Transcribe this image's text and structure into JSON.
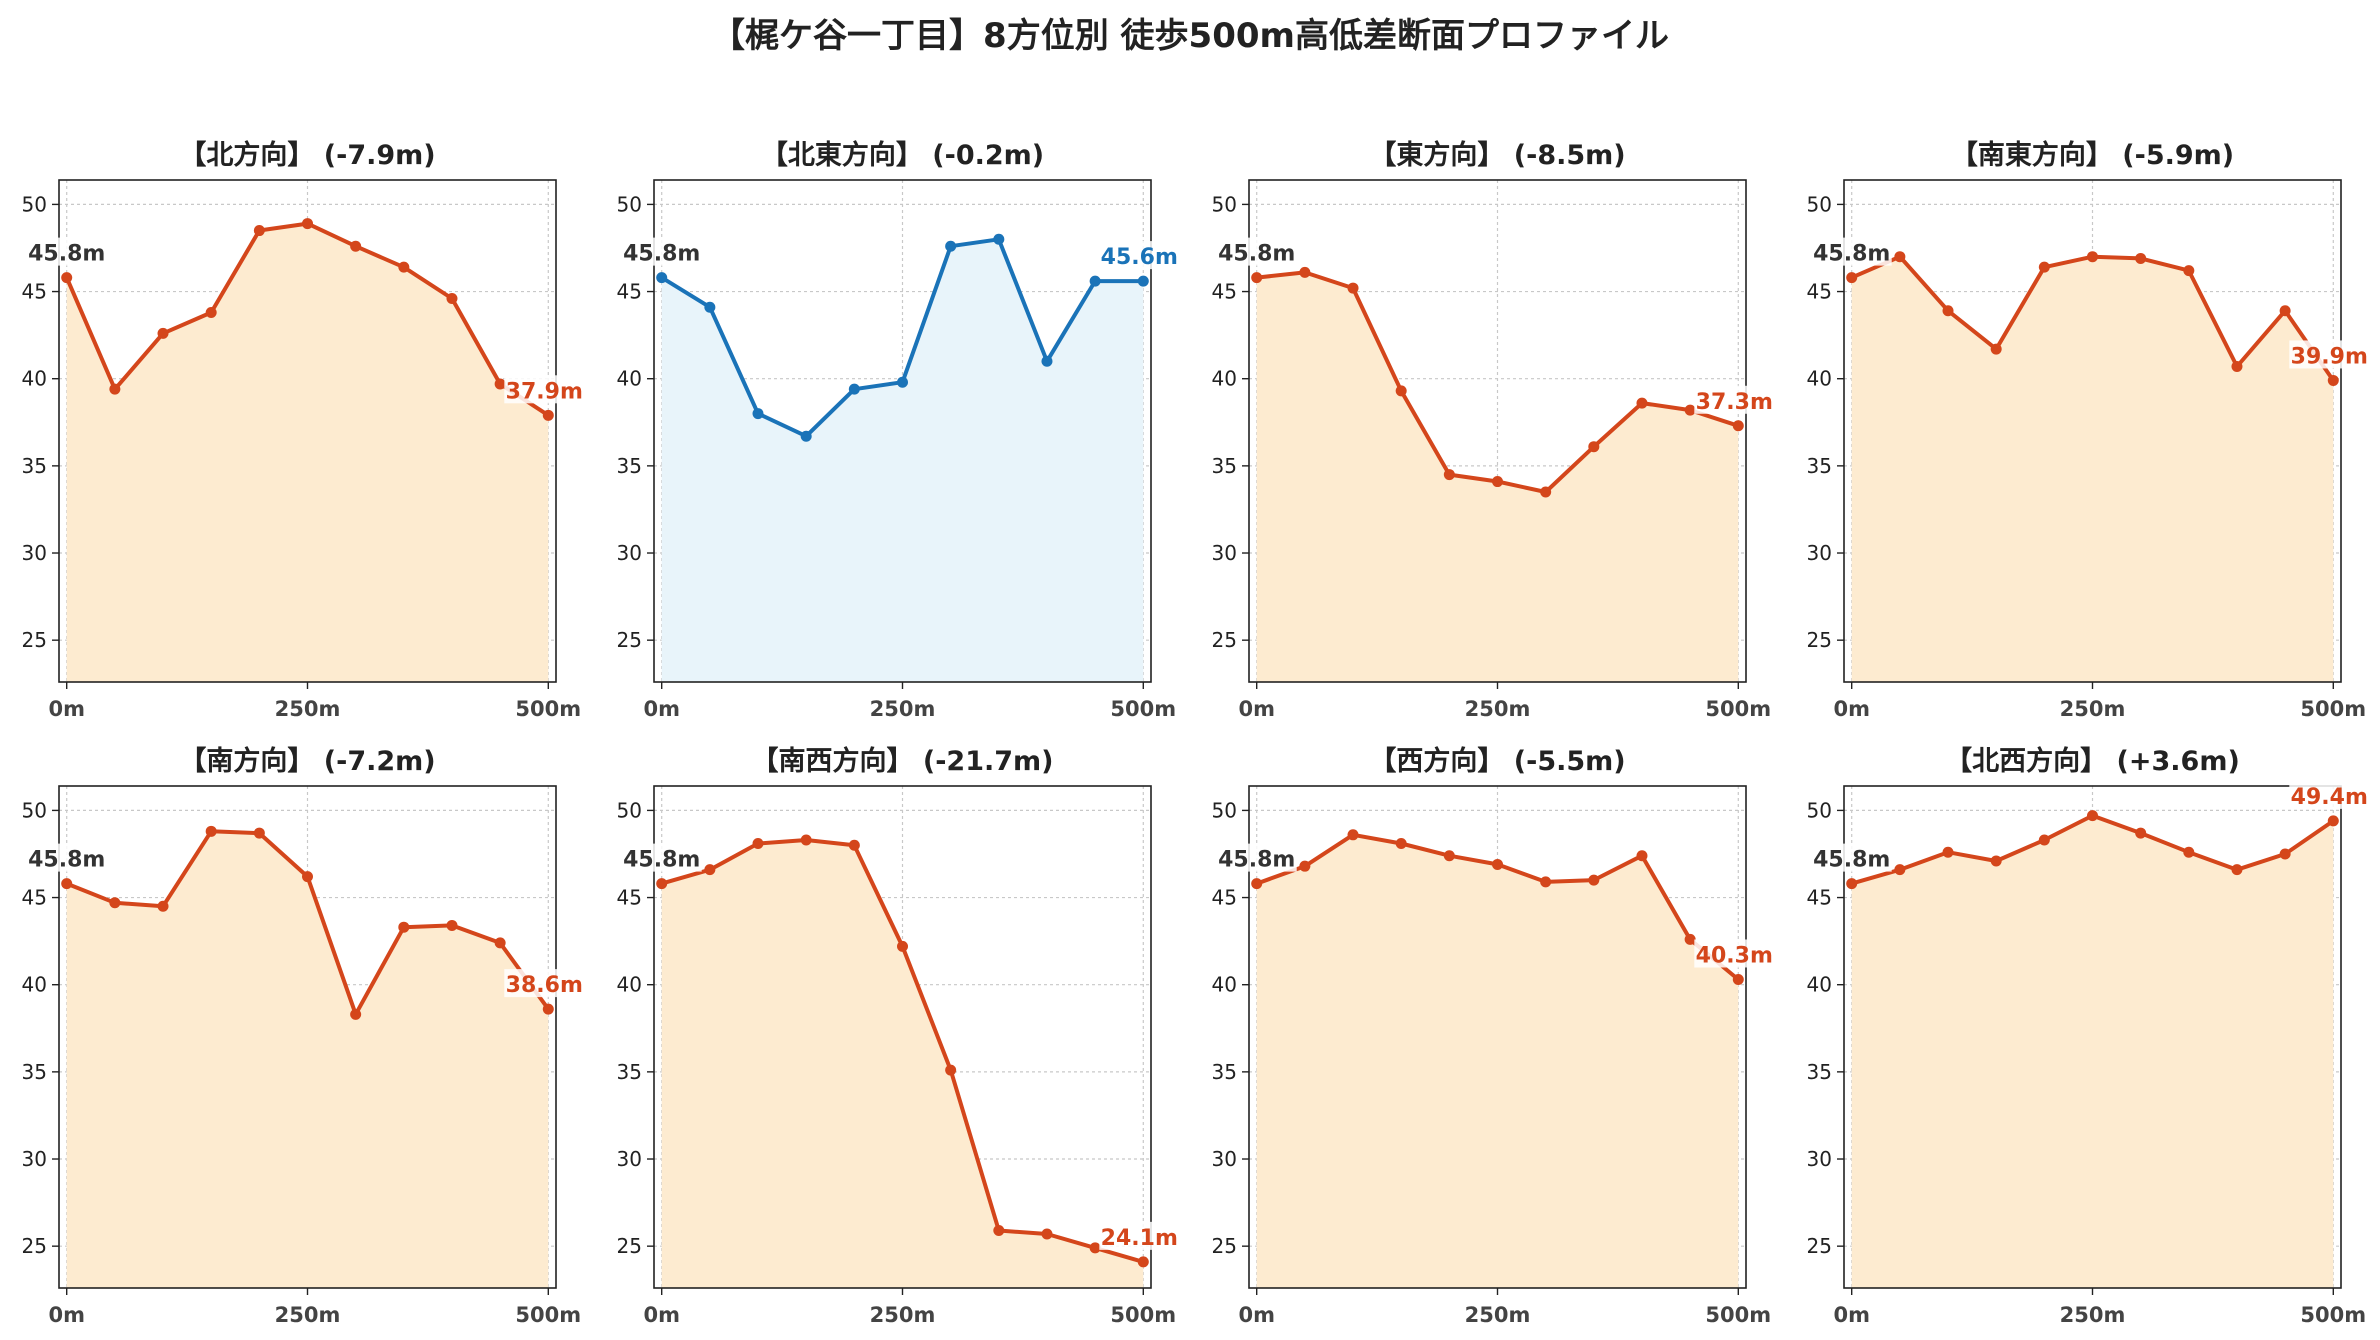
{
  "suptitle": "【梶ケ谷一丁目】8方位別 徒歩500m高低差断面プロファイル",
  "colors": {
    "down_line": "#d4461b",
    "down_fill": "#fdebd0",
    "flat_line": "#1a73b8",
    "flat_fill": "#e8f4fa",
    "start_label": "#333333"
  },
  "chart_data": [
    {
      "type": "line",
      "title": "【北方向】 (-7.9m)",
      "x": [
        0,
        50,
        100,
        150,
        200,
        250,
        300,
        350,
        400,
        450,
        500
      ],
      "y": [
        45.8,
        39.4,
        42.6,
        43.8,
        48.5,
        48.9,
        47.6,
        46.4,
        44.6,
        39.7,
        37.9
      ],
      "start_label": "45.8m",
      "end_label": "37.9m",
      "style": "down",
      "xticks": [
        "0m",
        "250m",
        "500m"
      ],
      "yticks": [
        25,
        30,
        35,
        40,
        45,
        50
      ],
      "xlim": [
        -8,
        508
      ],
      "ylim": [
        22.6,
        51.4
      ],
      "grid": true
    },
    {
      "type": "line",
      "title": "【北東方向】 (-0.2m)",
      "x": [
        0,
        50,
        100,
        150,
        200,
        250,
        300,
        350,
        400,
        450,
        500
      ],
      "y": [
        45.8,
        44.1,
        38.0,
        36.7,
        39.4,
        39.8,
        47.6,
        48.0,
        41.0,
        45.6,
        45.6
      ],
      "start_label": "45.8m",
      "end_label": "45.6m",
      "style": "flat",
      "xticks": [
        "0m",
        "250m",
        "500m"
      ],
      "yticks": [
        25,
        30,
        35,
        40,
        45,
        50
      ],
      "xlim": [
        -8,
        508
      ],
      "ylim": [
        22.6,
        51.4
      ],
      "grid": true
    },
    {
      "type": "line",
      "title": "【東方向】 (-8.5m)",
      "x": [
        0,
        50,
        100,
        150,
        200,
        250,
        300,
        350,
        400,
        450,
        500
      ],
      "y": [
        45.8,
        46.1,
        45.2,
        39.3,
        34.5,
        34.1,
        33.5,
        36.1,
        38.6,
        38.2,
        37.3
      ],
      "start_label": "45.8m",
      "end_label": "37.3m",
      "style": "down",
      "xticks": [
        "0m",
        "250m",
        "500m"
      ],
      "yticks": [
        25,
        30,
        35,
        40,
        45,
        50
      ],
      "xlim": [
        -8,
        508
      ],
      "ylim": [
        22.6,
        51.4
      ],
      "grid": true
    },
    {
      "type": "line",
      "title": "【南東方向】 (-5.9m)",
      "x": [
        0,
        50,
        100,
        150,
        200,
        250,
        300,
        350,
        400,
        450,
        500
      ],
      "y": [
        45.8,
        47.0,
        43.9,
        41.7,
        46.4,
        47.0,
        46.9,
        46.2,
        40.7,
        43.9,
        39.9
      ],
      "start_label": "45.8m",
      "end_label": "39.9m",
      "style": "down",
      "xticks": [
        "0m",
        "250m",
        "500m"
      ],
      "yticks": [
        25,
        30,
        35,
        40,
        45,
        50
      ],
      "xlim": [
        -8,
        508
      ],
      "ylim": [
        22.6,
        51.4
      ],
      "grid": true
    },
    {
      "type": "line",
      "title": "【南方向】 (-7.2m)",
      "x": [
        0,
        50,
        100,
        150,
        200,
        250,
        300,
        350,
        400,
        450,
        500
      ],
      "y": [
        45.8,
        44.7,
        44.5,
        48.8,
        48.7,
        46.2,
        38.3,
        43.3,
        43.4,
        42.4,
        38.6
      ],
      "start_label": "45.8m",
      "end_label": "38.6m",
      "style": "down",
      "xticks": [
        "0m",
        "250m",
        "500m"
      ],
      "yticks": [
        25,
        30,
        35,
        40,
        45,
        50
      ],
      "xlim": [
        -8,
        508
      ],
      "ylim": [
        22.6,
        51.4
      ],
      "grid": true
    },
    {
      "type": "line",
      "title": "【南西方向】 (-21.7m)",
      "x": [
        0,
        50,
        100,
        150,
        200,
        250,
        300,
        350,
        400,
        450,
        500
      ],
      "y": [
        45.8,
        46.6,
        48.1,
        48.3,
        48.0,
        42.2,
        35.1,
        25.9,
        25.7,
        24.9,
        24.1
      ],
      "start_label": "45.8m",
      "end_label": "24.1m",
      "style": "down",
      "xticks": [
        "0m",
        "250m",
        "500m"
      ],
      "yticks": [
        25,
        30,
        35,
        40,
        45,
        50
      ],
      "xlim": [
        -8,
        508
      ],
      "ylim": [
        22.6,
        51.4
      ],
      "grid": true
    },
    {
      "type": "line",
      "title": "【西方向】 (-5.5m)",
      "x": [
        0,
        50,
        100,
        150,
        200,
        250,
        300,
        350,
        400,
        450,
        500
      ],
      "y": [
        45.8,
        46.8,
        48.6,
        48.1,
        47.4,
        46.9,
        45.9,
        46.0,
        47.4,
        42.6,
        40.3
      ],
      "start_label": "45.8m",
      "end_label": "40.3m",
      "style": "down",
      "xticks": [
        "0m",
        "250m",
        "500m"
      ],
      "yticks": [
        25,
        30,
        35,
        40,
        45,
        50
      ],
      "xlim": [
        -8,
        508
      ],
      "ylim": [
        22.6,
        51.4
      ],
      "grid": true
    },
    {
      "type": "line",
      "title": "【北西方向】 (+3.6m)",
      "x": [
        0,
        50,
        100,
        150,
        200,
        250,
        300,
        350,
        400,
        450,
        500
      ],
      "y": [
        45.8,
        46.6,
        47.6,
        47.1,
        48.3,
        49.7,
        48.7,
        47.6,
        46.6,
        47.5,
        49.4
      ],
      "start_label": "45.8m",
      "end_label": "49.4m",
      "style": "down",
      "xticks": [
        "0m",
        "250m",
        "500m"
      ],
      "yticks": [
        25,
        30,
        35,
        40,
        45,
        50
      ],
      "xlim": [
        -8,
        508
      ],
      "ylim": [
        22.6,
        51.4
      ],
      "grid": true
    }
  ]
}
